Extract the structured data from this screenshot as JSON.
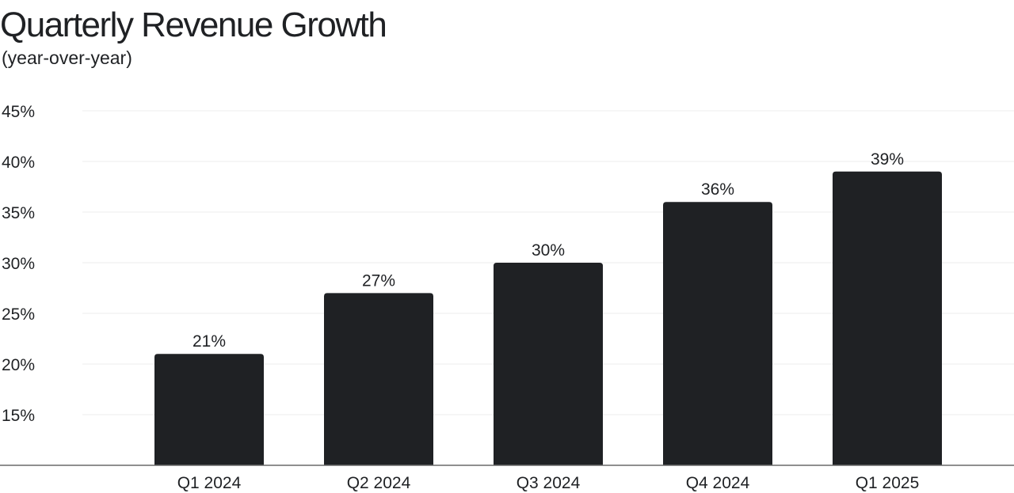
{
  "chart_data": {
    "type": "bar",
    "title": "Quarterly Revenue Growth",
    "subtitle": "(year-over-year)",
    "xlabel": "",
    "ylabel": "",
    "categories": [
      "Q1 2024",
      "Q2 2024",
      "Q3 2024",
      "Q4 2024",
      "Q1 2025"
    ],
    "values": [
      21,
      27,
      30,
      36,
      39
    ],
    "data_labels": [
      "21%",
      "27%",
      "30%",
      "36%",
      "39%"
    ],
    "y_ticks": [
      15,
      20,
      25,
      30,
      35,
      40,
      45
    ],
    "y_tick_labels": [
      "15%",
      "20%",
      "25%",
      "30%",
      "35%",
      "40%",
      "45%"
    ],
    "ylim": [
      10,
      45
    ],
    "grid": true,
    "legend": "none",
    "colors": {
      "bar": "#1f2124",
      "grid": "#ececec",
      "axis": "#6a6a6a",
      "text": "#1f2124"
    }
  }
}
